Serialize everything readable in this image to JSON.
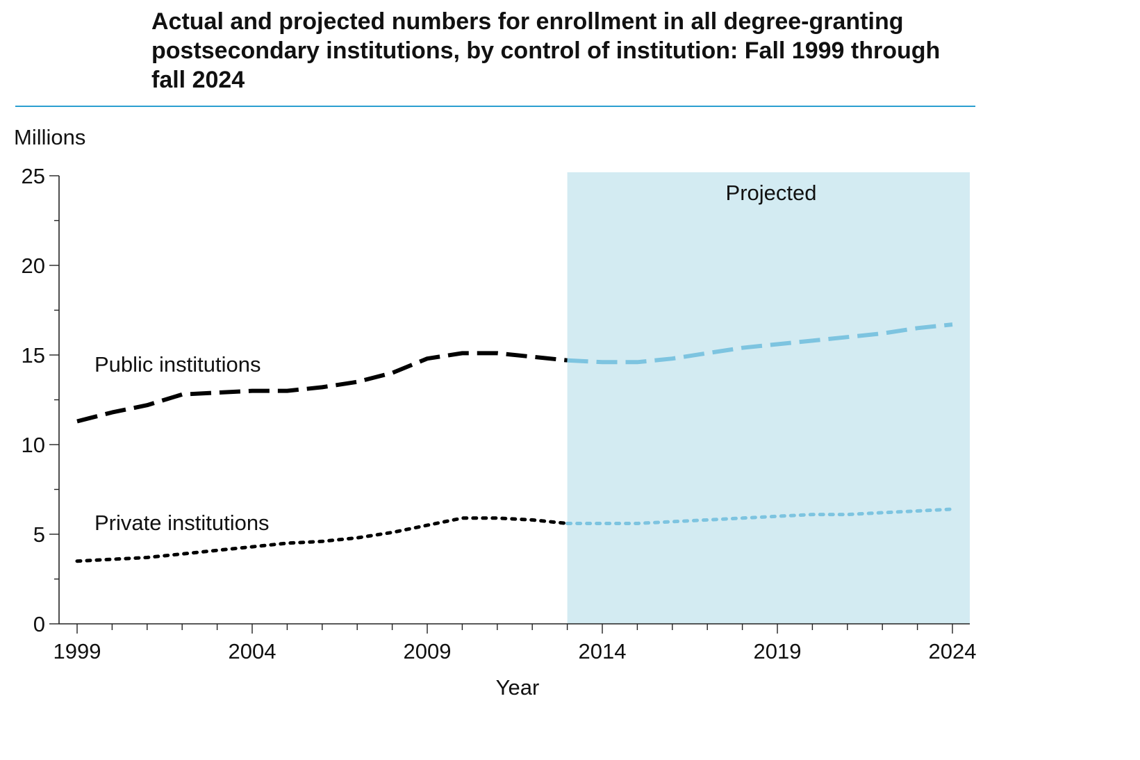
{
  "title": "Actual and projected numbers for enrollment in all degree-granting postsecondary institutions, by control of institution: Fall 1999 through fall 2024",
  "colors": {
    "actual": "#000000",
    "projected": "#7dc4e0",
    "projected_band": "#d3ebf2",
    "rule": "#2a9fd0"
  },
  "chart_data": {
    "type": "line",
    "title": "Actual and projected numbers for enrollment in all degree-granting postsecondary institutions, by control of institution: Fall 1999 through fall 2024",
    "xlabel": "Year",
    "ylabel": "Millions",
    "xlim": [
      1999,
      2024
    ],
    "ylim": [
      0,
      25
    ],
    "xticks": [
      1999,
      2004,
      2009,
      2014,
      2019,
      2024
    ],
    "yticks": [
      0,
      5,
      10,
      15,
      20,
      25
    ],
    "projected_start": 2013,
    "projected_label": "Projected",
    "x": [
      1999,
      2000,
      2001,
      2002,
      2003,
      2004,
      2005,
      2006,
      2007,
      2008,
      2009,
      2010,
      2011,
      2012,
      2013,
      2014,
      2015,
      2016,
      2017,
      2018,
      2019,
      2020,
      2021,
      2022,
      2023,
      2024
    ],
    "series": [
      {
        "label": "Public institutions",
        "style": "dashed",
        "values": [
          11.3,
          11.8,
          12.2,
          12.8,
          12.9,
          13.0,
          13.0,
          13.2,
          13.5,
          14.0,
          14.8,
          15.1,
          15.1,
          14.9,
          14.7,
          14.6,
          14.6,
          14.8,
          15.1,
          15.4,
          15.6,
          15.8,
          16.0,
          16.2,
          16.5,
          16.7
        ]
      },
      {
        "label": "Private institutions",
        "style": "dotted",
        "values": [
          3.5,
          3.6,
          3.7,
          3.9,
          4.1,
          4.3,
          4.5,
          4.6,
          4.8,
          5.1,
          5.5,
          5.9,
          5.9,
          5.8,
          5.6,
          5.6,
          5.6,
          5.7,
          5.8,
          5.9,
          6.0,
          6.1,
          6.1,
          6.2,
          6.3,
          6.4
        ]
      }
    ]
  }
}
